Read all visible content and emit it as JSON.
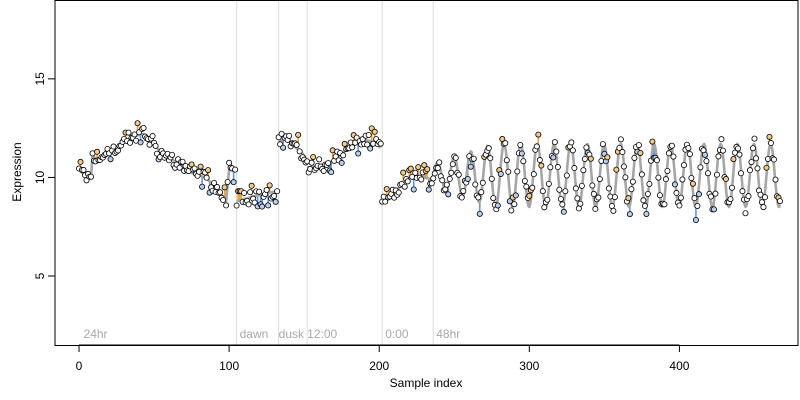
{
  "chart_data": {
    "type": "scatter",
    "xlabel": "Sample index",
    "ylabel": "Expression",
    "xlim": [
      -16,
      479
    ],
    "ylim": [
      1.5,
      19
    ],
    "xticks": [
      0,
      100,
      200,
      300,
      400
    ],
    "yticks": [
      5,
      10,
      15
    ],
    "grid": false,
    "legend": "none",
    "colors": {
      "points_stroke": "#000000",
      "point_fill_default": "#ffffff",
      "point_fill_high": "#f5c98a",
      "point_fill_low": "#b8cff0",
      "fit_line": "#a6a6a6",
      "deviation_high": "#f0a030",
      "deviation_low": "#5f95e6",
      "boundary_line": "#dcdcdc",
      "period_label": "#a8a8a8"
    },
    "boundaries": [
      105,
      133,
      152,
      202,
      236
    ],
    "period_labels": [
      {
        "text": "24hr",
        "x": 3
      },
      {
        "text": "dawn",
        "x": 107
      },
      {
        "text": "dusk",
        "x": 133
      },
      {
        "text": "12:00",
        "x": 152
      },
      {
        "text": "0:00",
        "x": 204
      },
      {
        "text": "48hr",
        "x": 238
      }
    ],
    "segments": [
      {
        "name": "24hr",
        "x_start": 0,
        "x_end": 104,
        "shape": "knots",
        "knots": [
          [
            0,
            10.4
          ],
          [
            5,
            10.0
          ],
          [
            8,
            10.0
          ],
          [
            9,
            11.1
          ],
          [
            14,
            10.8
          ],
          [
            19,
            11.5
          ],
          [
            25,
            11.3
          ],
          [
            30,
            11.8
          ],
          [
            37,
            12.1
          ],
          [
            43,
            12.2
          ],
          [
            48,
            11.9
          ],
          [
            55,
            11.2
          ],
          [
            62,
            10.9
          ],
          [
            68,
            10.6
          ],
          [
            76,
            10.2
          ],
          [
            84,
            10.0
          ],
          [
            90,
            9.6
          ],
          [
            95,
            9.1
          ],
          [
            98,
            8.8
          ],
          [
            100,
            10.4
          ],
          [
            104,
            10.3
          ]
        ]
      },
      {
        "name": "dawn",
        "x_start": 105,
        "x_end": 132,
        "shape": "knots",
        "knots": [
          [
            105,
            8.8
          ],
          [
            115,
            9.0
          ],
          [
            125,
            9.2
          ],
          [
            132,
            9.3
          ]
        ]
      },
      {
        "name": "dusk",
        "x_start": 133,
        "x_end": 151,
        "shape": "knots",
        "knots": [
          [
            133,
            11.8
          ],
          [
            138,
            12.0
          ],
          [
            143,
            11.6
          ],
          [
            148,
            11.3
          ],
          [
            151,
            11.0
          ]
        ]
      },
      {
        "name": "12:00",
        "x_start": 152,
        "x_end": 201,
        "shape": "knots",
        "knots": [
          [
            152,
            10.5
          ],
          [
            160,
            10.6
          ],
          [
            168,
            10.8
          ],
          [
            175,
            11.2
          ],
          [
            182,
            11.6
          ],
          [
            190,
            11.9
          ],
          [
            197,
            11.8
          ],
          [
            201,
            11.5
          ]
        ]
      },
      {
        "name": "0:00",
        "x_start": 202,
        "x_end": 235,
        "shape": "knots",
        "knots": [
          [
            202,
            8.7
          ],
          [
            206,
            8.9
          ],
          [
            210,
            9.2
          ],
          [
            216,
            9.7
          ],
          [
            220,
            10.0
          ],
          [
            226,
            10.1
          ],
          [
            230,
            10.0
          ],
          [
            235,
            9.9
          ]
        ]
      },
      {
        "name": "48hr",
        "x_start": 236,
        "x_end": 467,
        "shape": "oscillation",
        "mean": 10.1,
        "period": 11.1,
        "amp_start": 0.6,
        "amp_end": 1.6,
        "amp_ramp_end": 276,
        "phase_x": 236
      }
    ]
  }
}
